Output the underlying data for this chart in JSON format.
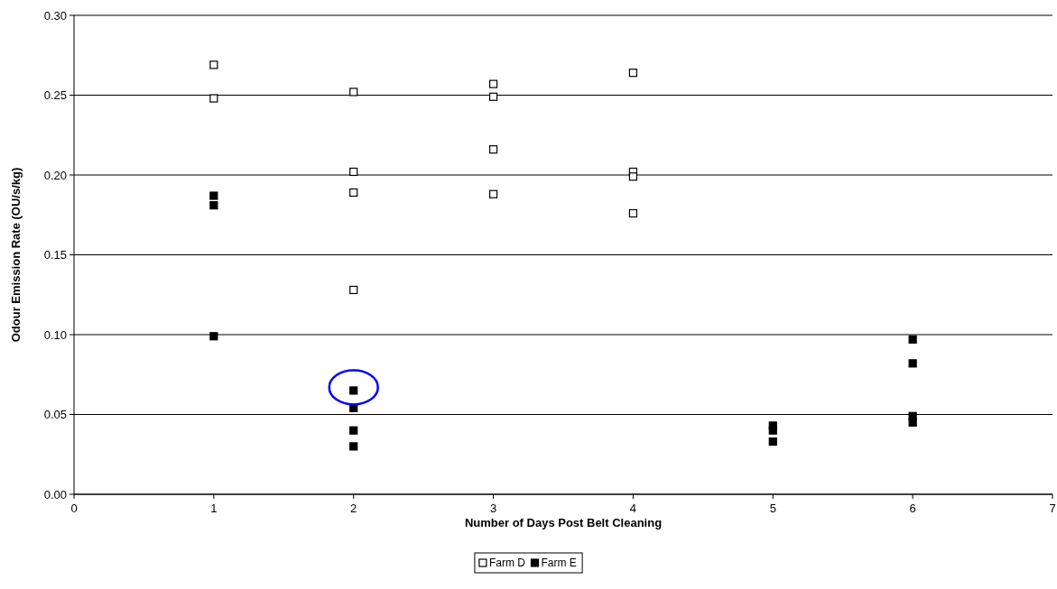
{
  "chart_data": {
    "type": "scatter",
    "xlabel": "Number of Days Post Belt Cleaning",
    "ylabel": "Odour Emission Rate (OU/s/kg)",
    "xlim": [
      0,
      7
    ],
    "xticks": [
      0,
      1,
      2,
      3,
      4,
      5,
      6,
      7
    ],
    "ylim": [
      0,
      0.3
    ],
    "yticks": [
      {
        "value": 0,
        "label": "0.00"
      },
      {
        "value": 0.05,
        "label": "0.05"
      },
      {
        "value": 0.1,
        "label": "0.10"
      },
      {
        "value": 0.15,
        "label": "0.15"
      },
      {
        "value": 0.2,
        "label": "0.20"
      },
      {
        "value": 0.25,
        "label": "0.25"
      },
      {
        "value": 0.3,
        "label": "0.30"
      }
    ],
    "grid": "y",
    "legend": "bottom",
    "marker": "square",
    "series": [
      {
        "name": "Farm D",
        "color": "#ffffff",
        "x": [
          1,
          1,
          2,
          2,
          2,
          2,
          3,
          3,
          3,
          3,
          4,
          4,
          4,
          4
        ],
        "values": [
          0.269,
          0.248,
          0.252,
          0.202,
          0.189,
          0.128,
          0.257,
          0.249,
          0.216,
          0.188,
          0.264,
          0.202,
          0.199,
          0.176
        ]
      },
      {
        "name": "Farm E",
        "color": "#000000",
        "x": [
          1,
          1,
          1,
          2,
          2,
          2,
          2,
          5,
          5,
          5,
          6,
          6,
          6,
          6
        ],
        "values": [
          0.187,
          0.181,
          0.099,
          0.065,
          0.054,
          0.04,
          0.03,
          0.043,
          0.04,
          0.033,
          0.097,
          0.082,
          0.049,
          0.045
        ]
      }
    ]
  }
}
